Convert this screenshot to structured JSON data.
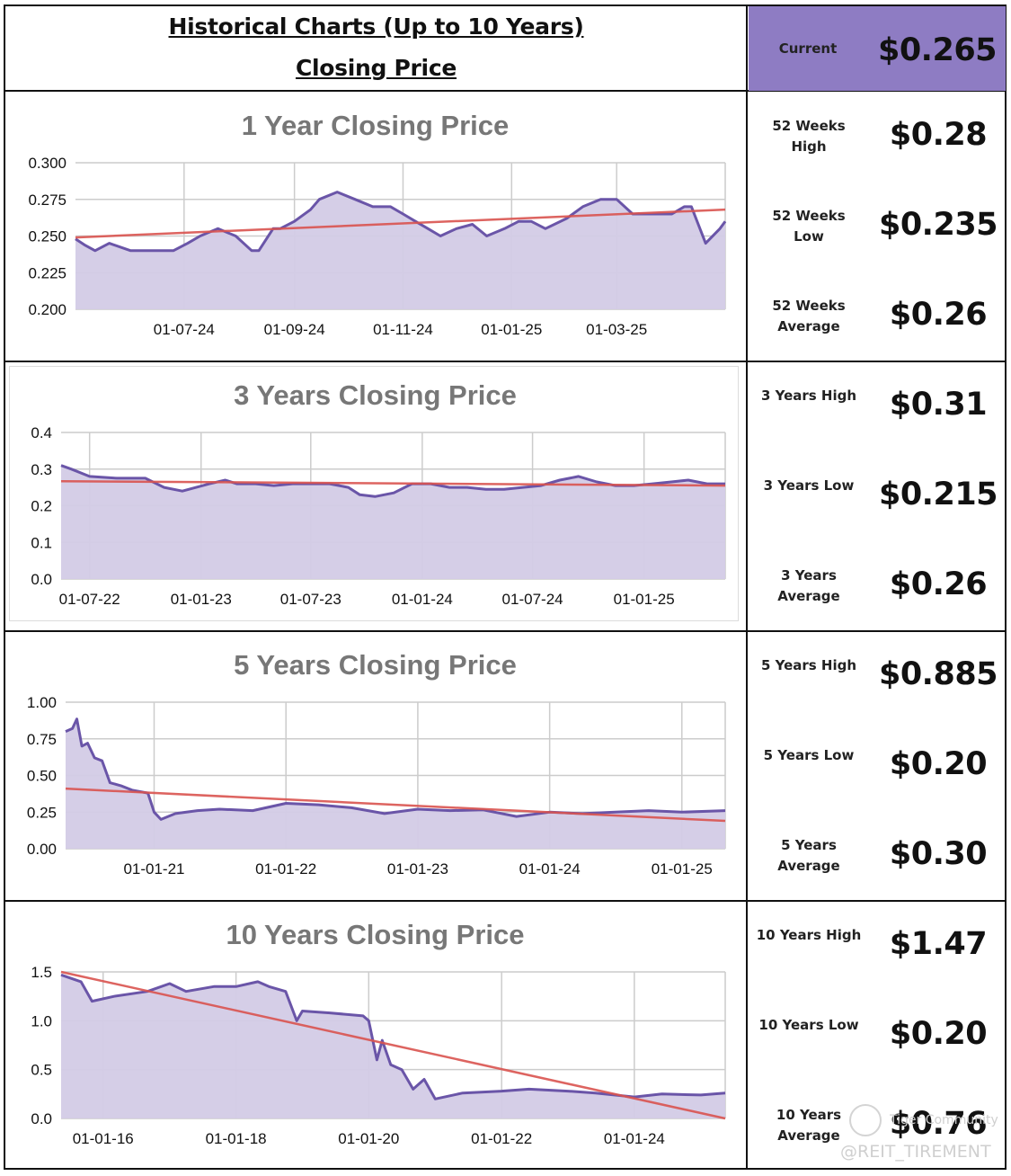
{
  "header": {
    "title_line1": "Historical Charts (Up to 10 Years)",
    "title_line2": "Closing Price",
    "current_label": "Current",
    "current_value": "$0.265"
  },
  "stats": [
    {
      "label": "52 Weeks High",
      "value": "$0.28"
    },
    {
      "label": "52 Weeks Low",
      "value": "$0.235"
    },
    {
      "label": "52 Weeks Average",
      "value": "$0.26"
    },
    {
      "label": "3 Years High",
      "value": "$0.31"
    },
    {
      "label": "3 Years Low",
      "value": "$0.215"
    },
    {
      "label": "3 Years Average",
      "value": "$0.26"
    },
    {
      "label": "5 Years High",
      "value": "$0.885"
    },
    {
      "label": "5 Years Low",
      "value": "$0.20"
    },
    {
      "label": "5 Years Average",
      "value": "$0.30"
    },
    {
      "label": "10 Years High",
      "value": "$1.47"
    },
    {
      "label": "10 Years Low",
      "value": "$0.20"
    },
    {
      "label": "10 Years Average",
      "value": "$0.76"
    }
  ],
  "watermark": {
    "line1": "Tiger Community",
    "line2": "@REIT_TIREMENT"
  },
  "colors": {
    "price_line": "#6a55a8",
    "area_fill": "#d3cbe6",
    "trend_line": "#d9534f",
    "header_accent": "#8e7cc3",
    "grid": "#cccccc"
  },
  "chart_data": [
    {
      "type": "area",
      "title": "1 Year Closing Price",
      "xlabel": "",
      "ylabel": "",
      "x_start": "2024-05-01",
      "x_end": "2025-05-01",
      "xticks": [
        "2024-07-01",
        "2024-09-01",
        "2024-11-01",
        "2025-01-01",
        "2025-03-01"
      ],
      "xtick_labels": [
        "01-07-24",
        "01-09-24",
        "01-11-24",
        "01-01-25",
        "01-03-25"
      ],
      "yticks": [
        0.2,
        0.225,
        0.25,
        0.275,
        0.3
      ],
      "ytick_labels": [
        "0.200",
        "0.225",
        "0.250",
        "0.275",
        "0.300"
      ],
      "ylim": [
        0.2,
        0.3
      ],
      "grid": true,
      "series": [
        {
          "x": [
            "2024-05-01",
            "2024-05-06",
            "2024-05-12",
            "2024-05-20",
            "2024-06-01",
            "2024-06-15",
            "2024-06-25",
            "2024-07-03",
            "2024-07-10",
            "2024-07-20",
            "2024-07-30",
            "2024-08-08",
            "2024-08-12",
            "2024-08-20",
            "2024-08-24",
            "2024-09-01",
            "2024-09-10",
            "2024-09-15",
            "2024-09-25",
            "2024-10-05",
            "2024-10-15",
            "2024-10-25",
            "2024-11-01",
            "2024-11-08",
            "2024-11-15",
            "2024-11-22",
            "2024-12-01",
            "2024-12-10",
            "2024-12-18",
            "2024-12-28",
            "2025-01-05",
            "2025-01-12",
            "2025-01-20",
            "2025-02-01",
            "2025-02-10",
            "2025-02-20",
            "2025-03-01",
            "2025-03-10",
            "2025-03-20",
            "2025-04-01",
            "2025-04-08",
            "2025-04-12",
            "2025-04-20",
            "2025-04-28",
            "2025-05-01"
          ],
          "y": [
            0.248,
            0.244,
            0.24,
            0.245,
            0.24,
            0.24,
            0.24,
            0.245,
            0.25,
            0.255,
            0.25,
            0.24,
            0.24,
            0.255,
            0.255,
            0.26,
            0.268,
            0.275,
            0.28,
            0.275,
            0.27,
            0.27,
            0.265,
            0.26,
            0.255,
            0.25,
            0.255,
            0.258,
            0.25,
            0.255,
            0.26,
            0.26,
            0.255,
            0.262,
            0.27,
            0.275,
            0.275,
            0.265,
            0.265,
            0.265,
            0.27,
            0.27,
            0.245,
            0.255,
            0.26
          ]
        }
      ],
      "trend": {
        "y_start": 0.249,
        "y_end": 0.268
      }
    },
    {
      "type": "area",
      "title": "3 Years Closing Price",
      "xlabel": "",
      "ylabel": "",
      "x_start": "2022-05-15",
      "x_end": "2025-05-15",
      "xticks": [
        "2022-07-01",
        "2023-01-01",
        "2023-07-01",
        "2024-01-01",
        "2024-07-01",
        "2025-01-01"
      ],
      "xtick_labels": [
        "01-07-22",
        "01-01-23",
        "01-07-23",
        "01-01-24",
        "01-07-24",
        "01-01-25"
      ],
      "yticks": [
        0,
        0.1,
        0.2,
        0.3,
        0.4
      ],
      "ytick_labels": [
        "0.0",
        "0.1",
        "0.2",
        "0.3",
        "0.4"
      ],
      "ylim": [
        0,
        0.4
      ],
      "grid": true,
      "series": [
        {
          "x": [
            "2022-05-15",
            "2022-06-01",
            "2022-07-01",
            "2022-08-15",
            "2022-10-01",
            "2022-11-01",
            "2022-12-01",
            "2023-01-15",
            "2023-02-10",
            "2023-03-01",
            "2023-04-01",
            "2023-05-01",
            "2023-06-01",
            "2023-07-10",
            "2023-08-01",
            "2023-09-01",
            "2023-09-20",
            "2023-10-15",
            "2023-11-15",
            "2023-12-15",
            "2024-01-15",
            "2024-02-15",
            "2024-03-15",
            "2024-04-15",
            "2024-05-15",
            "2024-06-15",
            "2024-07-15",
            "2024-08-15",
            "2024-09-15",
            "2024-10-15",
            "2024-11-15",
            "2024-12-15",
            "2025-01-15",
            "2025-02-15",
            "2025-03-15",
            "2025-04-15",
            "2025-05-15"
          ],
          "y": [
            0.31,
            0.3,
            0.28,
            0.275,
            0.275,
            0.25,
            0.24,
            0.26,
            0.27,
            0.26,
            0.26,
            0.255,
            0.26,
            0.26,
            0.26,
            0.25,
            0.23,
            0.225,
            0.235,
            0.26,
            0.26,
            0.25,
            0.25,
            0.245,
            0.245,
            0.25,
            0.255,
            0.27,
            0.28,
            0.265,
            0.255,
            0.255,
            0.26,
            0.265,
            0.27,
            0.26,
            0.26
          ]
        }
      ],
      "trend": {
        "y_start": 0.267,
        "y_end": 0.255
      }
    },
    {
      "type": "area",
      "title": "5 Years Closing Price",
      "xlabel": "",
      "ylabel": "",
      "x_start": "2020-05-01",
      "x_end": "2025-05-01",
      "xticks": [
        "2021-01-01",
        "2022-01-01",
        "2023-01-01",
        "2024-01-01",
        "2025-01-01"
      ],
      "xtick_labels": [
        "01-01-21",
        "01-01-22",
        "01-01-23",
        "01-01-24",
        "01-01-25"
      ],
      "yticks": [
        0,
        0.25,
        0.5,
        0.75,
        1.0
      ],
      "ytick_labels": [
        "0.00",
        "0.25",
        "0.50",
        "0.75",
        "1.00"
      ],
      "ylim": [
        0,
        1.0
      ],
      "grid": true,
      "series": [
        {
          "x": [
            "2020-05-01",
            "2020-05-20",
            "2020-06-01",
            "2020-06-15",
            "2020-07-01",
            "2020-07-20",
            "2020-08-10",
            "2020-09-01",
            "2020-10-01",
            "2020-11-01",
            "2020-12-15",
            "2021-01-01",
            "2021-01-20",
            "2021-03-01",
            "2021-05-01",
            "2021-07-01",
            "2021-10-01",
            "2022-01-01",
            "2022-04-01",
            "2022-07-01",
            "2022-10-01",
            "2023-01-01",
            "2023-04-01",
            "2023-07-01",
            "2023-10-01",
            "2024-01-01",
            "2024-04-01",
            "2024-07-01",
            "2024-10-01",
            "2025-01-01",
            "2025-05-01"
          ],
          "y": [
            0.8,
            0.82,
            0.885,
            0.7,
            0.72,
            0.62,
            0.6,
            0.45,
            0.43,
            0.4,
            0.38,
            0.25,
            0.2,
            0.24,
            0.26,
            0.27,
            0.26,
            0.31,
            0.3,
            0.28,
            0.24,
            0.27,
            0.26,
            0.265,
            0.22,
            0.25,
            0.24,
            0.25,
            0.26,
            0.25,
            0.26
          ]
        }
      ],
      "trend": {
        "y_start": 0.41,
        "y_end": 0.19
      }
    },
    {
      "type": "area",
      "title": "10 Years Closing Price",
      "xlabel": "",
      "ylabel": "",
      "x_start": "2015-05-15",
      "x_end": "2025-05-15",
      "xticks": [
        "2016-01-01",
        "2018-01-01",
        "2020-01-01",
        "2022-01-01",
        "2024-01-01"
      ],
      "xtick_labels": [
        "01-01-16",
        "01-01-18",
        "01-01-20",
        "01-01-22",
        "01-01-24"
      ],
      "yticks": [
        0,
        0.5,
        1.0,
        1.5
      ],
      "ytick_labels": [
        "0.0",
        "0.5",
        "1.0",
        "1.5"
      ],
      "ylim": [
        0,
        1.5
      ],
      "grid": true,
      "series": [
        {
          "x": [
            "2015-05-15",
            "2015-09-01",
            "2015-11-01",
            "2016-03-01",
            "2016-09-01",
            "2017-01-01",
            "2017-04-01",
            "2017-09-01",
            "2018-01-01",
            "2018-05-01",
            "2018-07-01",
            "2018-10-01",
            "2018-12-01",
            "2019-01-01",
            "2019-06-01",
            "2019-12-01",
            "2020-01-01",
            "2020-02-15",
            "2020-03-15",
            "2020-05-01",
            "2020-07-01",
            "2020-09-01",
            "2020-11-01",
            "2021-01-01",
            "2021-06-01",
            "2022-01-01",
            "2022-06-01",
            "2023-01-01",
            "2023-06-01",
            "2024-01-01",
            "2024-06-01",
            "2025-01-01",
            "2025-05-15"
          ],
          "y": [
            1.47,
            1.4,
            1.2,
            1.25,
            1.3,
            1.38,
            1.3,
            1.35,
            1.35,
            1.4,
            1.35,
            1.3,
            1.0,
            1.1,
            1.08,
            1.05,
            1.0,
            0.6,
            0.8,
            0.55,
            0.5,
            0.3,
            0.4,
            0.2,
            0.26,
            0.28,
            0.3,
            0.28,
            0.26,
            0.22,
            0.25,
            0.24,
            0.26
          ]
        }
      ],
      "trend": {
        "y_start": 1.5,
        "y_end": 0.0
      }
    }
  ]
}
